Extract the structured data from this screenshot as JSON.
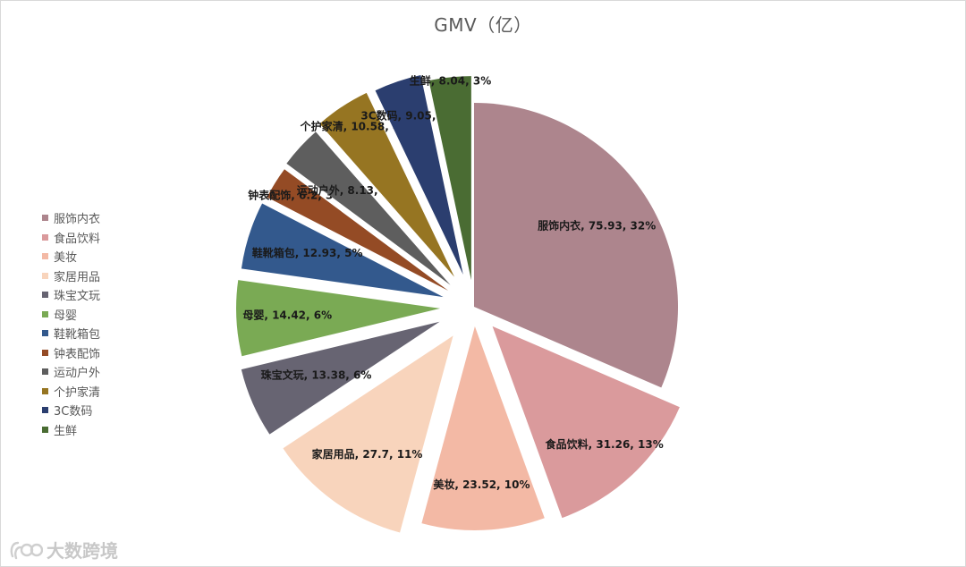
{
  "chart_data": {
    "type": "pie",
    "title": "GMV（亿）",
    "legend_position": "left",
    "slices": [
      {
        "label": "服饰内衣",
        "value": 75.93,
        "percent": "32%",
        "color": "#AD858D"
      },
      {
        "label": "食品饮料",
        "value": 31.26,
        "percent": "13%",
        "color": "#DA9A9C"
      },
      {
        "label": "美妆",
        "value": 23.52,
        "percent": "10%",
        "color": "#F3B9A5"
      },
      {
        "label": "家居用品",
        "value": 27.7,
        "percent": "11%",
        "color": "#F8D4BC"
      },
      {
        "label": "珠宝文玩",
        "value": 13.38,
        "percent": "6%",
        "color": "#676472"
      },
      {
        "label": "母婴",
        "value": 14.42,
        "percent": "6%",
        "color": "#7AAA54"
      },
      {
        "label": "鞋靴箱包",
        "value": 12.93,
        "percent": "5%",
        "color": "#33598D"
      },
      {
        "label": "钟表配饰",
        "value": 6.2,
        "percent": "3%",
        "color": "#944B25"
      },
      {
        "label": "运动户外",
        "value": 8.13,
        "percent": "3%",
        "color": "#5E5E5E"
      },
      {
        "label": "个护家清",
        "value": 10.58,
        "percent": "4%",
        "color": "#967522"
      },
      {
        "label": "3C数码",
        "value": 9.05,
        "percent": "4%",
        "color": "#2B3E6F"
      },
      {
        "label": "生鲜",
        "value": 8.04,
        "percent": "3%",
        "color": "#4A6C33"
      }
    ]
  },
  "watermark": {
    "text": "大数跨境"
  }
}
